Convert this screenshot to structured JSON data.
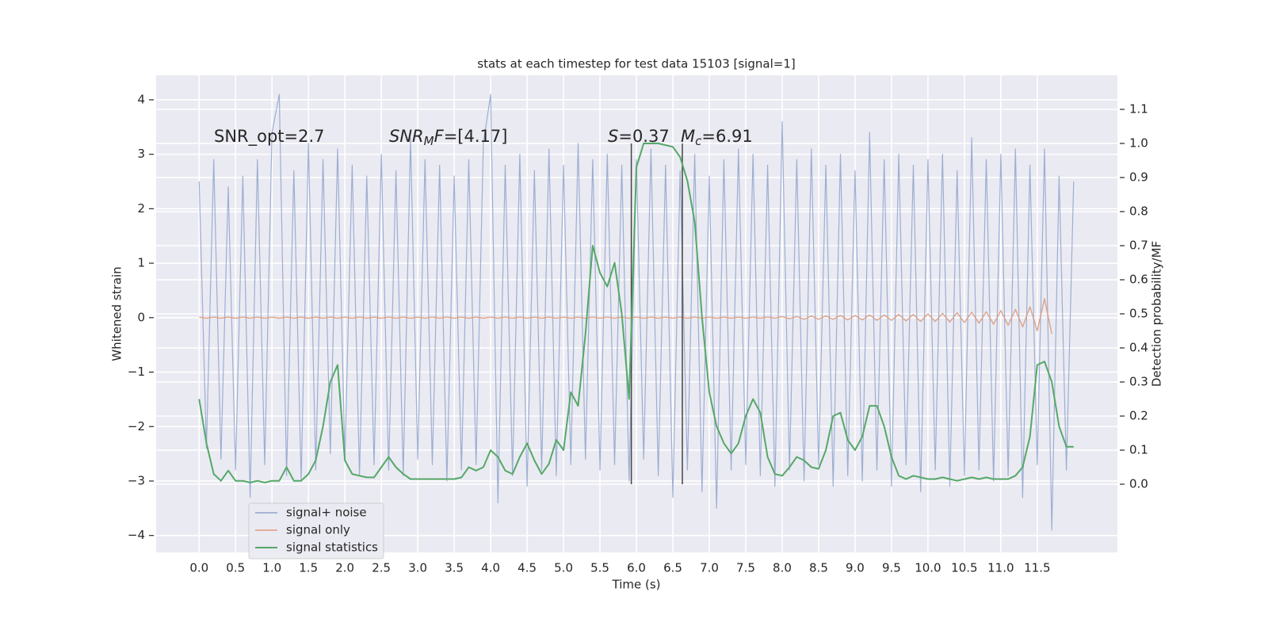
{
  "chart_data": {
    "type": "line",
    "title": "stats at each timestep for test data 15103 [signal=1]",
    "xlabel": "Time (s)",
    "ylabel": "Whitened strain",
    "y2label": "Detection probability/MF",
    "grid": true,
    "legend": "lower left",
    "background": "#eaeaf2",
    "xlim": [
      -0.59,
      12.6
    ],
    "ylim": [
      -4.31,
      4.45
    ],
    "y2lim": [
      -0.2,
      1.2
    ],
    "xticks": [
      {
        "value": 0,
        "label": "0.0"
      },
      0.5,
      {
        "value": 1,
        "label": "1.0"
      },
      1.5,
      {
        "value": 2,
        "label": "2.0"
      },
      2.5,
      {
        "value": 3,
        "label": "3.0"
      },
      3.5,
      {
        "value": 4,
        "label": "4.0"
      },
      4.5,
      {
        "value": 5,
        "label": "5.0"
      },
      5.5,
      {
        "value": 6,
        "label": "6.0"
      },
      6.5,
      {
        "value": 7,
        "label": "7.0"
      },
      7.5,
      {
        "value": 8,
        "label": "8.0"
      },
      8.5,
      {
        "value": 9,
        "label": "9.0"
      },
      9.5,
      {
        "value": 10,
        "label": "10.0"
      },
      10.5,
      {
        "value": 11,
        "label": "11.0"
      },
      11.5
    ],
    "yticks": [
      {
        "value": -4,
        "label": "−4"
      },
      {
        "value": -3,
        "label": "−3"
      },
      {
        "value": -2,
        "label": "−2"
      },
      {
        "value": -1,
        "label": "−1"
      },
      0,
      1,
      2,
      3,
      4
    ],
    "y2ticks": [
      {
        "value": 0,
        "label": "0.0"
      },
      0.1,
      0.2,
      0.3,
      0.4,
      0.5,
      0.6,
      0.7,
      0.8,
      0.9,
      {
        "value": 1,
        "label": "1.0"
      },
      1.1
    ],
    "vlines": [
      5.93,
      6.63
    ],
    "vline_color": "#444444",
    "annotations": [
      {
        "parts": [
          {
            "text": "SNR_opt=2.7"
          }
        ]
      },
      {
        "parts": [
          {
            "text": "SNR",
            "italic": true
          },
          {
            "text": "M",
            "italic": true,
            "sub": true
          },
          {
            "text": "F",
            "italic": true
          },
          {
            "text": "=[4.17]"
          }
        ]
      },
      {
        "parts": [
          {
            "text": "S",
            "italic": true
          },
          {
            "text": "=0.37"
          }
        ]
      },
      {
        "parts": [
          {
            "text": "M",
            "italic": true
          },
          {
            "text": "c",
            "italic": true,
            "sub": true
          },
          {
            "text": "=6.91"
          }
        ]
      }
    ],
    "x": [
      0,
      0.1,
      0.2,
      0.3,
      0.4,
      0.5,
      0.6,
      0.7,
      0.8,
      0.9,
      1,
      1.1,
      1.2,
      1.3,
      1.4,
      1.5,
      1.6,
      1.7,
      1.8,
      1.9,
      2,
      2.1,
      2.2,
      2.3,
      2.4,
      2.5,
      2.6,
      2.7,
      2.8,
      2.9,
      3,
      3.1,
      3.2,
      3.3,
      3.4,
      3.5,
      3.6,
      3.7,
      3.8,
      3.9,
      4,
      4.1,
      4.2,
      4.3,
      4.4,
      4.5,
      4.6,
      4.7,
      4.8,
      4.9,
      5,
      5.1,
      5.2,
      5.3,
      5.4,
      5.5,
      5.6,
      5.7,
      5.8,
      5.9,
      6,
      6.1,
      6.2,
      6.3,
      6.4,
      6.5,
      6.6,
      6.7,
      6.8,
      6.9,
      7,
      7.1,
      7.2,
      7.3,
      7.4,
      7.5,
      7.6,
      7.7,
      7.8,
      7.9,
      8,
      8.1,
      8.2,
      8.3,
      8.4,
      8.5,
      8.6,
      8.7,
      8.8,
      8.9,
      9,
      9.1,
      9.2,
      9.3,
      9.4,
      9.5,
      9.6,
      9.7,
      9.8,
      9.9,
      10,
      10.1,
      10.2,
      10.3,
      10.4,
      10.5,
      10.6,
      10.7,
      10.8,
      10.9,
      11,
      11.1,
      11.2,
      11.3,
      11.4,
      11.5,
      11.6,
      11.7,
      11.8,
      11.9,
      12
    ],
    "series": [
      {
        "name": "signal+ noise",
        "color": "#8fa3cc",
        "values": [
          2.5,
          -2.4,
          2.9,
          -2.6,
          2.4,
          -2.8,
          2.6,
          -3.3,
          2.9,
          -2.7,
          3.4,
          4.1,
          -2.9,
          2.7,
          -3.0,
          3.2,
          -2.8,
          2.9,
          -2.5,
          3.1,
          -2.6,
          2.8,
          -2.9,
          2.6,
          -2.7,
          3.0,
          -2.8,
          2.7,
          -2.9,
          3.3,
          -2.6,
          2.9,
          -2.7,
          2.8,
          -3.0,
          2.6,
          -2.8,
          2.9,
          -2.7,
          3.2,
          4.1,
          -3.4,
          2.8,
          -2.9,
          3.0,
          -3.1,
          2.7,
          -2.8,
          3.1,
          -2.9,
          2.8,
          -2.7,
          3.2,
          -2.6,
          2.9,
          -2.8,
          3.0,
          -2.7,
          2.8,
          -3.0,
          2.9,
          -2.6,
          3.1,
          -2.9,
          2.8,
          -3.3,
          2.7,
          -2.8,
          3.0,
          -3.2,
          2.6,
          -3.5,
          2.9,
          -2.8,
          3.1,
          -2.7,
          3.0,
          -2.9,
          2.8,
          -3.1,
          3.6,
          -2.8,
          2.9,
          -3.0,
          3.1,
          -2.7,
          2.8,
          -3.1,
          3.0,
          -2.9,
          2.7,
          -3.0,
          3.4,
          -2.8,
          2.9,
          -3.1,
          3.0,
          -2.7,
          2.8,
          -3.2,
          2.9,
          -2.8,
          3.0,
          -3.1,
          2.7,
          -2.9,
          3.3,
          -2.8,
          2.9,
          -3.0,
          3.0,
          -2.9,
          3.1,
          -3.3,
          2.8,
          -2.7,
          3.1,
          -3.9,
          2.6,
          -2.8,
          2.5
        ]
      },
      {
        "name": "signal only",
        "color": "#dd9a7c",
        "values": [
          0.01,
          -0.01,
          0.01,
          -0.01,
          0.01,
          -0.01,
          0.01,
          -0.01,
          0.01,
          -0.01,
          0.01,
          -0.01,
          0.01,
          -0.01,
          0.01,
          -0.01,
          0.01,
          -0.01,
          0.01,
          -0.01,
          0.01,
          -0.01,
          0.01,
          -0.01,
          0.01,
          -0.01,
          0.01,
          -0.01,
          0.01,
          -0.01,
          0.01,
          -0.01,
          0.01,
          -0.01,
          0.01,
          -0.01,
          0.01,
          -0.01,
          0.01,
          -0.01,
          0.01,
          -0.01,
          0.01,
          -0.01,
          0.01,
          -0.01,
          0.01,
          -0.01,
          0.01,
          -0.01,
          0.01,
          -0.01,
          0.01,
          -0.01,
          0.01,
          -0.01,
          0.01,
          -0.01,
          0.01,
          -0.01,
          0.01,
          -0.01,
          0.01,
          -0.01,
          0.01,
          -0.01,
          0.01,
          -0.01,
          0.01,
          -0.01,
          0.01,
          -0.01,
          0.01,
          -0.01,
          0.01,
          -0.01,
          0.01,
          -0.01,
          0.01,
          -0.01,
          0.02,
          -0.02,
          0.02,
          -0.03,
          0.03,
          -0.03,
          0.03,
          -0.03,
          0.04,
          -0.04,
          0.04,
          -0.04,
          0.05,
          -0.05,
          0.05,
          -0.05,
          0.06,
          -0.06,
          0.06,
          -0.07,
          0.07,
          -0.07,
          0.08,
          -0.08,
          0.09,
          -0.09,
          0.1,
          -0.1,
          0.11,
          -0.12,
          0.13,
          -0.14,
          0.15,
          -0.17,
          0.2,
          -0.24,
          0.35,
          -0.3,
          null,
          null,
          null
        ]
      },
      {
        "name": "signal statistics",
        "color": "#55a868",
        "axis": "y2",
        "values": [
          0.25,
          0.12,
          0.03,
          0.01,
          0.04,
          0.01,
          0.01,
          0.005,
          0.01,
          0.005,
          0.01,
          0.01,
          0.05,
          0.01,
          0.01,
          0.03,
          0.07,
          0.17,
          0.3,
          0.35,
          0.07,
          0.03,
          0.025,
          0.02,
          0.02,
          0.05,
          0.08,
          0.05,
          0.03,
          0.015,
          0.015,
          0.015,
          0.015,
          0.015,
          0.015,
          0.015,
          0.02,
          0.05,
          0.04,
          0.05,
          0.1,
          0.08,
          0.04,
          0.03,
          0.08,
          0.12,
          0.07,
          0.03,
          0.06,
          0.13,
          0.1,
          0.27,
          0.23,
          0.44,
          0.7,
          0.62,
          0.58,
          0.65,
          0.5,
          0.25,
          0.93,
          1.0,
          1.0,
          1.0,
          0.995,
          0.99,
          0.96,
          0.89,
          0.77,
          0.49,
          0.27,
          0.17,
          0.12,
          0.09,
          0.12,
          0.2,
          0.25,
          0.21,
          0.08,
          0.03,
          0.025,
          0.05,
          0.08,
          0.07,
          0.05,
          0.045,
          0.1,
          0.2,
          0.21,
          0.13,
          0.1,
          0.14,
          0.23,
          0.23,
          0.17,
          0.08,
          0.025,
          0.015,
          0.025,
          0.02,
          0.015,
          0.015,
          0.02,
          0.015,
          0.01,
          0.015,
          0.02,
          0.015,
          0.02,
          0.015,
          0.015,
          0.015,
          0.025,
          0.05,
          0.14,
          0.35,
          0.36,
          0.3,
          0.17,
          0.11,
          0.11
        ]
      }
    ]
  }
}
